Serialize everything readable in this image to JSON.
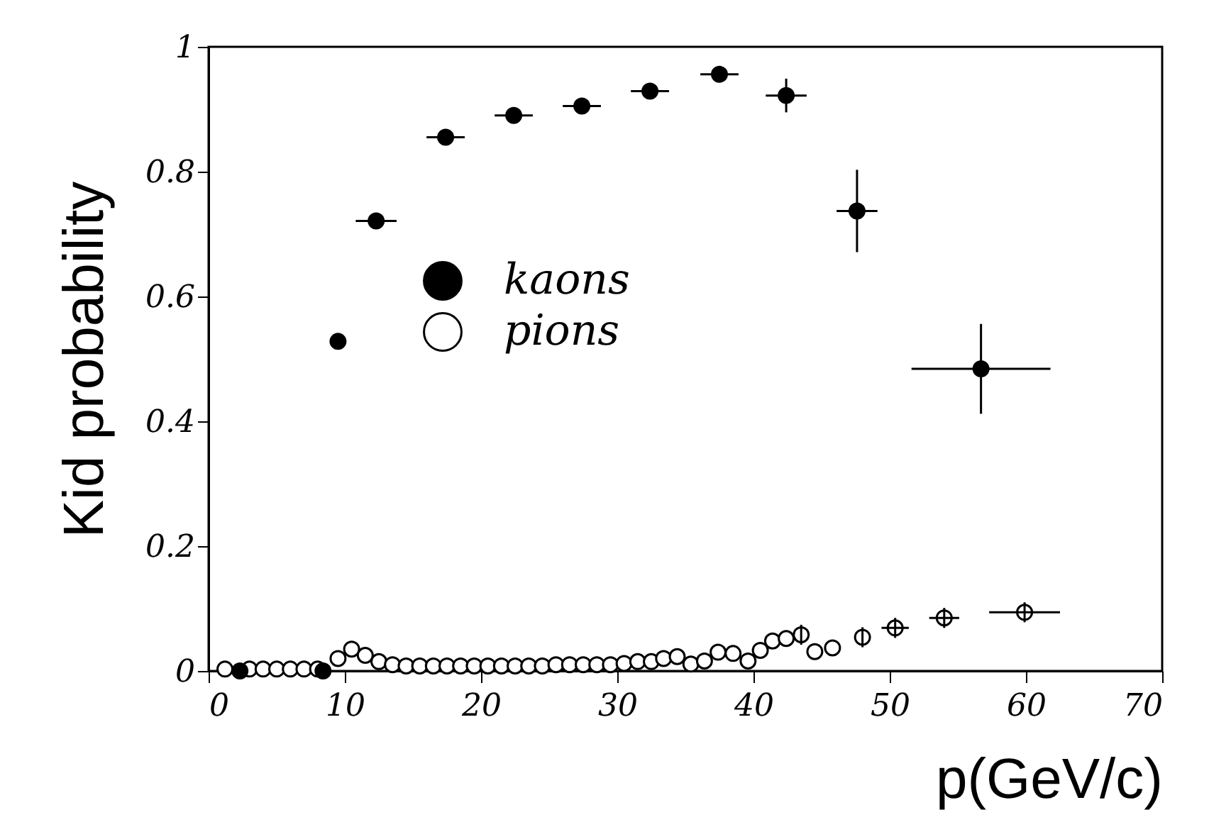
{
  "chart_data": {
    "type": "scatter",
    "xlabel": "p(GeV/c)",
    "ylabel": "Kid probability",
    "xlim": [
      0,
      70
    ],
    "ylim": [
      0,
      1
    ],
    "xticks": [
      0,
      10,
      20,
      30,
      40,
      50,
      60,
      70
    ],
    "yticks": [
      0,
      0.2,
      0.4,
      0.6,
      0.8,
      1
    ],
    "grid": false,
    "legend": "left",
    "marker": "circle",
    "series": [
      {
        "name": "kaons",
        "color": "#000000",
        "x": [
          2.3,
          8.4,
          9.5,
          12.3,
          17.4,
          22.4,
          27.4,
          32.4,
          37.5,
          42.4,
          47.6,
          56.7
        ],
        "values": [
          0,
          0,
          0.528,
          0.721,
          0.855,
          0.89,
          0.905,
          0.929,
          0.956,
          0.922,
          0.737,
          0.484
        ],
        "errors": [
          null,
          null,
          null,
          null,
          null,
          null,
          null,
          null,
          0.008,
          0.027,
          0.066,
          0.072
        ],
        "xerrors": [
          null,
          null,
          null,
          1.5,
          1.4,
          1.4,
          1.4,
          1.4,
          1.4,
          1.5,
          1.5,
          5.1
        ]
      },
      {
        "name": "pions",
        "color": "#000000",
        "x": [
          1.2,
          3,
          4,
          5,
          6,
          7,
          8,
          9.5,
          10.5,
          11.5,
          12.5,
          13.5,
          14.5,
          15.5,
          16.5,
          17.5,
          18.5,
          19.5,
          20.5,
          21.5,
          22.5,
          23.5,
          24.5,
          25.5,
          26.5,
          27.5,
          28.5,
          29.5,
          30.5,
          31.5,
          32.5,
          33.4,
          34.4,
          35.4,
          36.4,
          37.4,
          38.5,
          39.6,
          40.5,
          41.4,
          42.4,
          43.5,
          44.5,
          45.8,
          48.0,
          50.4,
          54.0,
          59.9
        ],
        "values": [
          0.003,
          0.003,
          0.003,
          0.003,
          0.003,
          0.003,
          0.003,
          0.02,
          0.035,
          0.025,
          0.015,
          0.01,
          0.008,
          0.008,
          0.008,
          0.008,
          0.008,
          0.008,
          0.008,
          0.008,
          0.008,
          0.008,
          0.008,
          0.01,
          0.01,
          0.01,
          0.01,
          0.01,
          0.012,
          0.015,
          0.015,
          0.02,
          0.023,
          0.011,
          0.016,
          0.03,
          0.028,
          0.016,
          0.033,
          0.048,
          0.052,
          0.058,
          0.031,
          0.037,
          0.054,
          0.069,
          0.085,
          0.094
        ],
        "errors": [
          null,
          null,
          null,
          null,
          null,
          null,
          null,
          null,
          null,
          null,
          null,
          null,
          null,
          null,
          null,
          null,
          null,
          null,
          null,
          null,
          null,
          null,
          null,
          null,
          null,
          null,
          null,
          null,
          null,
          null,
          null,
          null,
          null,
          null,
          null,
          null,
          null,
          null,
          null,
          null,
          null,
          0.016,
          null,
          null,
          0.016,
          0.016,
          0.016,
          0.016
        ],
        "xerrors": [
          null,
          null,
          null,
          null,
          null,
          null,
          null,
          null,
          null,
          null,
          null,
          null,
          null,
          null,
          null,
          null,
          null,
          null,
          null,
          null,
          null,
          null,
          null,
          null,
          null,
          null,
          null,
          null,
          null,
          null,
          null,
          null,
          null,
          null,
          null,
          null,
          null,
          null,
          null,
          null,
          null,
          null,
          null,
          null,
          null,
          1.0,
          1.1,
          2.6
        ]
      }
    ]
  }
}
